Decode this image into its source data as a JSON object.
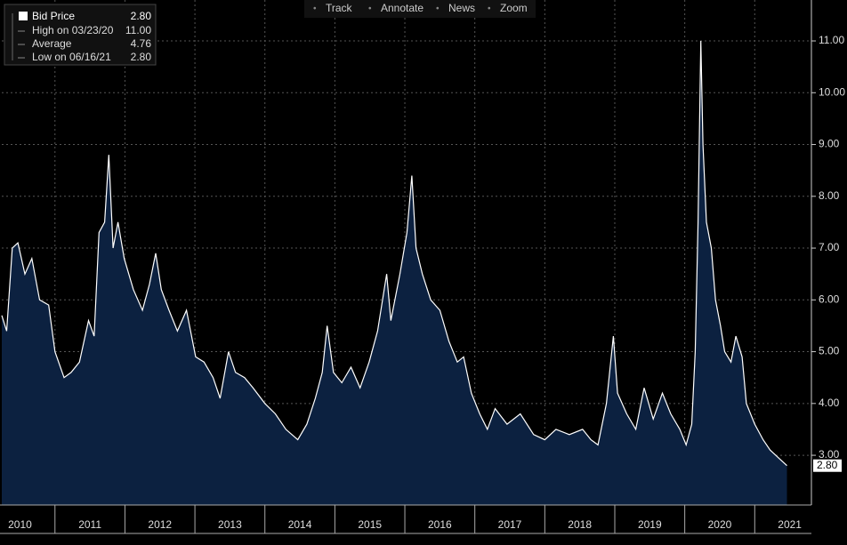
{
  "toolbar": [
    "Track",
    "Annotate",
    "News",
    "Zoom"
  ],
  "chart_data": {
    "type": "area",
    "x": [
      2010.24,
      2010.31,
      2010.39,
      2010.47,
      2010.57,
      2010.67,
      2010.78,
      2010.91,
      2011.0,
      2011.13,
      2011.23,
      2011.35,
      2011.48,
      2011.56,
      2011.63,
      2011.71,
      2011.77,
      2011.83,
      2011.9,
      2011.99,
      2012.12,
      2012.25,
      2012.35,
      2012.44,
      2012.52,
      2012.63,
      2012.75,
      2012.88,
      2013.01,
      2013.13,
      2013.26,
      2013.36,
      2013.48,
      2013.58,
      2013.71,
      2013.83,
      2014.0,
      2014.15,
      2014.3,
      2014.47,
      2014.6,
      2014.72,
      2014.82,
      2014.89,
      2014.98,
      2015.1,
      2015.23,
      2015.36,
      2015.49,
      2015.61,
      2015.74,
      2015.8,
      2015.93,
      2016.03,
      2016.1,
      2016.16,
      2016.25,
      2016.37,
      2016.5,
      2016.63,
      2016.75,
      2016.84,
      2016.95,
      2017.07,
      2017.18,
      2017.29,
      2017.46,
      2017.65,
      2017.84,
      2018.0,
      2018.16,
      2018.35,
      2018.54,
      2018.66,
      2018.76,
      2018.88,
      2018.98,
      2019.04,
      2019.17,
      2019.3,
      2019.42,
      2019.55,
      2019.68,
      2019.8,
      2019.93,
      2020.02,
      2020.1,
      2020.15,
      2020.19,
      2020.23,
      2020.26,
      2020.31,
      2020.38,
      2020.44,
      2020.51,
      2020.57,
      2020.66,
      2020.73,
      2020.82,
      2020.88,
      2021.0,
      2021.12,
      2021.22,
      2021.3,
      2021.38,
      2021.46
    ],
    "series": [
      {
        "name": "Bid Price",
        "color": "#ffffff",
        "fill": "#0c2140",
        "last_label": "2.80",
        "values": [
          5.7,
          5.4,
          7.0,
          7.1,
          6.5,
          6.8,
          6.0,
          5.9,
          5.0,
          4.5,
          4.6,
          4.8,
          5.6,
          5.3,
          7.3,
          7.5,
          8.8,
          7.0,
          7.5,
          6.8,
          6.2,
          5.8,
          6.3,
          6.9,
          6.2,
          5.8,
          5.4,
          5.8,
          4.9,
          4.8,
          4.5,
          4.1,
          5.0,
          4.6,
          4.5,
          4.3,
          4.0,
          3.8,
          3.5,
          3.3,
          3.6,
          4.1,
          4.6,
          5.5,
          4.6,
          4.4,
          4.7,
          4.3,
          4.8,
          5.4,
          6.5,
          5.6,
          6.5,
          7.3,
          8.4,
          7.0,
          6.5,
          6.0,
          5.8,
          5.2,
          4.8,
          4.9,
          4.2,
          3.8,
          3.5,
          3.9,
          3.6,
          3.8,
          3.4,
          3.3,
          3.5,
          3.4,
          3.5,
          3.3,
          3.2,
          4.0,
          5.3,
          4.2,
          3.8,
          3.5,
          4.3,
          3.7,
          4.2,
          3.8,
          3.5,
          3.2,
          3.6,
          5.0,
          7.5,
          11.0,
          9.0,
          7.5,
          7.0,
          6.0,
          5.5,
          5.0,
          4.8,
          5.3,
          4.9,
          4.0,
          3.6,
          3.3,
          3.1,
          3.0,
          2.9,
          2.8
        ]
      }
    ],
    "legend_stats": [
      {
        "label": "High on 03/23/20",
        "value": "11.00"
      },
      {
        "label": "Average",
        "value": "4.76"
      },
      {
        "label": "Low on 06/16/21",
        "value": "2.80"
      }
    ],
    "xlim": [
      2010.24,
      2021.81
    ],
    "xticks": [
      2010,
      2011,
      2012,
      2013,
      2014,
      2015,
      2016,
      2017,
      2018,
      2019,
      2020,
      2021
    ],
    "ylim": [
      2.04,
      11.79
    ],
    "yticks": [
      {
        "value": 3,
        "label": "3.00"
      },
      {
        "value": 4,
        "label": "4.00"
      },
      {
        "value": 5,
        "label": "5.00"
      },
      {
        "value": 6,
        "label": "6.00"
      },
      {
        "value": 7,
        "label": "7.00"
      },
      {
        "value": 8,
        "label": "8.00"
      },
      {
        "value": 9,
        "label": "9.00"
      },
      {
        "value": 10,
        "label": "10.00"
      },
      {
        "value": 11,
        "label": "11.00"
      }
    ],
    "grid": true
  }
}
